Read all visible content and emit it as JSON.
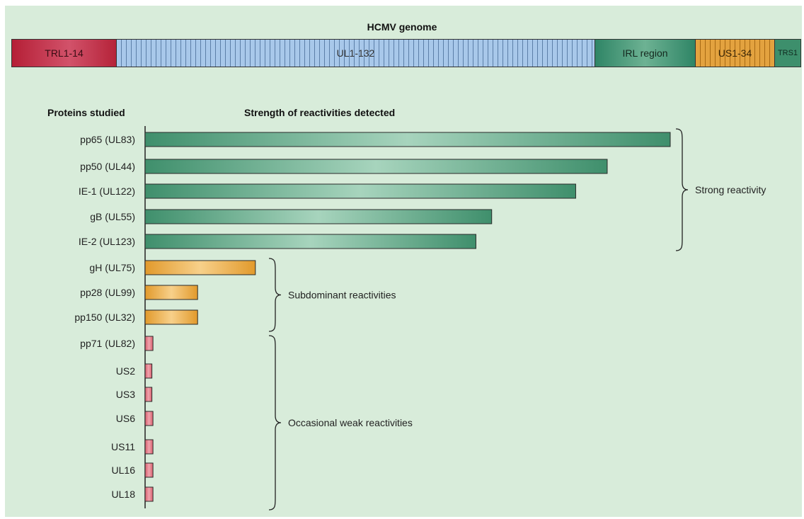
{
  "genome": {
    "title": "HCMV genome",
    "segments": [
      {
        "label": "TRL1-14",
        "color": "#c23048"
      },
      {
        "label": "UL1-132",
        "color": "#a8c8ea"
      },
      {
        "label": "IRL region",
        "color": "#4f9c7c"
      },
      {
        "label": "US1-34",
        "color": "#e3a23f"
      },
      {
        "label": "TRS1",
        "color": "#3d8f6c"
      }
    ]
  },
  "headers": {
    "proteins": "Proteins studied",
    "strength": "Strength of reactivities detected"
  },
  "chart_data": {
    "type": "bar",
    "orientation": "horizontal",
    "categories": [
      "pp65 (UL83)",
      "pp50 (UL44)",
      "IE-1 (UL122)",
      "gB (UL55)",
      "IE-2 (UL123)",
      "gH (UL75)",
      "pp28 (UL99)",
      "pp150 (UL32)",
      "pp71 (UL82)",
      "US2",
      "US3",
      "US6",
      "US11",
      "UL16",
      "UL18"
    ],
    "values": [
      100,
      88,
      82,
      66,
      63,
      21,
      10,
      10,
      1.5,
      1.3,
      1.3,
      1.5,
      1.5,
      1.5,
      1.5
    ],
    "value_axis": "unlabeled",
    "xlim": [
      0,
      100
    ],
    "groups": [
      {
        "label": "Strong reactivity",
        "start": 0,
        "end": 4,
        "color": "#3f8f6c",
        "light": "#a7d4bd"
      },
      {
        "label": "Subdominant reactivities",
        "start": 5,
        "end": 7,
        "color": "#e29a2c",
        "light": "#f7d08a"
      },
      {
        "label": "Occasional weak reactivities",
        "start": 8,
        "end": 14,
        "color": "#d9606f",
        "light": "#f0a3ad"
      }
    ]
  }
}
